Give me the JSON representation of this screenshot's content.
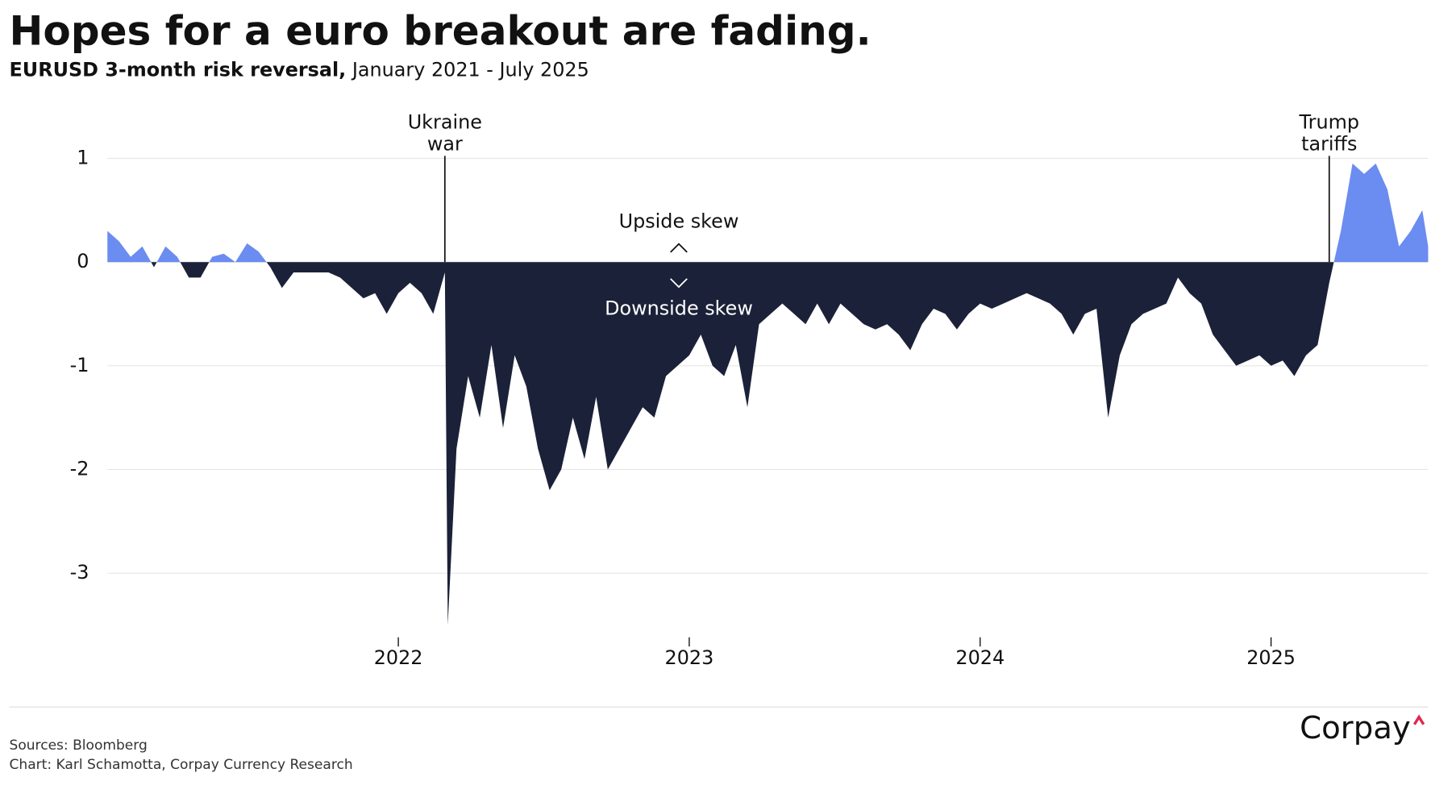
{
  "chart_data": {
    "type": "area",
    "title": "Hopes for a euro breakout are fading.",
    "subtitle": [
      "EURUSD 3-month risk reversal,",
      "January 2021 - July 2025"
    ],
    "x": [
      2021.0,
      2021.04,
      2021.08,
      2021.12,
      2021.16,
      2021.2,
      2021.24,
      2021.28,
      2021.32,
      2021.36,
      2021.4,
      2021.44,
      2021.48,
      2021.52,
      2021.56,
      2021.6,
      2021.64,
      2021.68,
      2021.72,
      2021.76,
      2021.8,
      2021.84,
      2021.88,
      2021.92,
      2021.96,
      2022.0,
      2022.04,
      2022.08,
      2022.12,
      2022.16,
      2022.17,
      2022.2,
      2022.24,
      2022.28,
      2022.32,
      2022.36,
      2022.4,
      2022.44,
      2022.48,
      2022.52,
      2022.56,
      2022.6,
      2022.64,
      2022.68,
      2022.72,
      2022.76,
      2022.8,
      2022.84,
      2022.88,
      2022.92,
      2022.96,
      2023.0,
      2023.04,
      2023.08,
      2023.12,
      2023.16,
      2023.2,
      2023.24,
      2023.28,
      2023.32,
      2023.36,
      2023.4,
      2023.44,
      2023.48,
      2023.52,
      2023.56,
      2023.6,
      2023.64,
      2023.68,
      2023.72,
      2023.76,
      2023.8,
      2023.84,
      2023.88,
      2023.92,
      2023.96,
      2024.0,
      2024.04,
      2024.08,
      2024.12,
      2024.16,
      2024.2,
      2024.24,
      2024.28,
      2024.32,
      2024.36,
      2024.4,
      2024.44,
      2024.48,
      2024.52,
      2024.56,
      2024.6,
      2024.64,
      2024.68,
      2024.72,
      2024.76,
      2024.8,
      2024.84,
      2024.88,
      2024.92,
      2024.96,
      2025.0,
      2025.04,
      2025.08,
      2025.12,
      2025.16,
      2025.2,
      2025.24,
      2025.28,
      2025.32,
      2025.36,
      2025.4,
      2025.44,
      2025.48,
      2025.52,
      2025.54
    ],
    "values": [
      0.3,
      0.2,
      0.05,
      0.15,
      -0.05,
      0.15,
      0.05,
      -0.15,
      -0.15,
      0.05,
      0.08,
      0.0,
      0.18,
      0.1,
      -0.05,
      -0.25,
      -0.1,
      -0.1,
      -0.1,
      -0.1,
      -0.15,
      -0.25,
      -0.35,
      -0.3,
      -0.5,
      -0.3,
      -0.2,
      -0.3,
      -0.5,
      -0.1,
      -3.5,
      -1.8,
      -1.1,
      -1.5,
      -0.8,
      -1.6,
      -0.9,
      -1.2,
      -1.8,
      -2.2,
      -2.0,
      -1.5,
      -1.9,
      -1.3,
      -2.0,
      -1.8,
      -1.6,
      -1.4,
      -1.5,
      -1.1,
      -1.0,
      -0.9,
      -0.7,
      -1.0,
      -1.1,
      -0.8,
      -1.4,
      -0.6,
      -0.5,
      -0.4,
      -0.5,
      -0.6,
      -0.4,
      -0.6,
      -0.4,
      -0.5,
      -0.6,
      -0.65,
      -0.6,
      -0.7,
      -0.85,
      -0.6,
      -0.45,
      -0.5,
      -0.65,
      -0.5,
      -0.4,
      -0.45,
      -0.4,
      -0.35,
      -0.3,
      -0.35,
      -0.4,
      -0.5,
      -0.7,
      -0.5,
      -0.45,
      -1.5,
      -0.9,
      -0.6,
      -0.5,
      -0.45,
      -0.4,
      -0.15,
      -0.3,
      -0.4,
      -0.7,
      -0.85,
      -1.0,
      -0.95,
      -0.9,
      -1.0,
      -0.95,
      -1.1,
      -0.9,
      -0.8,
      -0.2,
      0.3,
      0.95,
      0.85,
      0.95,
      0.7,
      0.15,
      0.3,
      0.5,
      0.15
    ],
    "positive_color": "#6b8cf0",
    "negative_color": "#1b2138",
    "xlim": [
      2021.0,
      2025.54
    ],
    "xticks": [
      2022,
      2023,
      2024,
      2025
    ],
    "ylim": [
      -3.6,
      1.2
    ],
    "yticks": [
      -3,
      -2,
      -1,
      0,
      1
    ],
    "grid": true,
    "annotations": [
      {
        "label": [
          "Ukraine",
          "war"
        ],
        "x": 2022.16
      },
      {
        "label": [
          "Trump",
          "tariffs"
        ],
        "x": 2025.2
      }
    ],
    "upside_label": "Upside skew",
    "downside_label": "Downside skew",
    "sources": "Sources: Bloomberg",
    "credit": "Chart: Karl Schamotta, Corpay Currency Research",
    "logo": "Corpay"
  }
}
